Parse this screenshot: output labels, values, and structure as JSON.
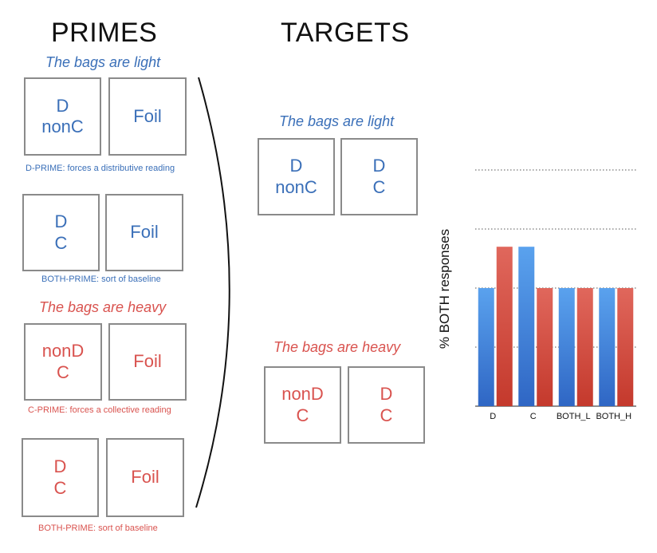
{
  "primes": {
    "heading": "PRIMES",
    "light_sentence": "The bags are light",
    "heavy_sentence": "The bags are heavy",
    "d_prime": {
      "target_box": "D\nnonC",
      "foil_box": "Foil",
      "caption": "D-PRIME: forces a distributive reading"
    },
    "both_prime_light": {
      "target_box": "D\nC",
      "foil_box": "Foil",
      "caption": "BOTH-PRIME: sort of baseline"
    },
    "c_prime": {
      "target_box": "nonD\nC",
      "foil_box": "Foil",
      "caption": "C-PRIME: forces a collective reading"
    },
    "both_prime_heavy": {
      "target_box": "D\nC",
      "foil_box": "Foil",
      "caption": "BOTH-PRIME: sort of baseline"
    }
  },
  "targets": {
    "heading": "TARGETS",
    "light_sentence": "The bags are light",
    "heavy_sentence": "The bags are heavy",
    "light_pair": [
      "D\nnonC",
      "D\nC"
    ],
    "heavy_pair": [
      "nonD\nC",
      "D\nC"
    ]
  },
  "colors": {
    "blue": "#3a6fb8",
    "red": "#d9534f",
    "bar_blue": "#4a8fe0",
    "bar_red": "#d5483b"
  },
  "chart_data": {
    "type": "bar",
    "title": "",
    "xlabel": "",
    "ylabel": "% BOTH responses",
    "ylim": [
      0,
      4
    ],
    "grid": true,
    "categories": [
      "D",
      "C",
      "BOTH_L",
      "BOTH_H"
    ],
    "series": [
      {
        "values": [
          2,
          2.7,
          2,
          2
        ]
      },
      {
        "values": [
          2.7,
          2,
          2,
          2
        ]
      }
    ]
  }
}
